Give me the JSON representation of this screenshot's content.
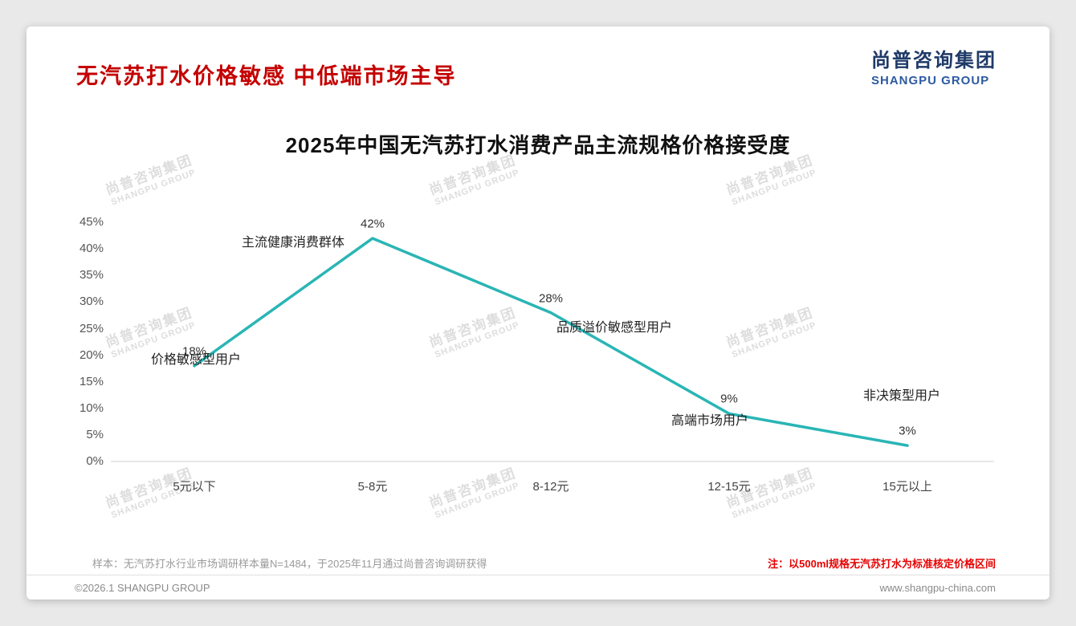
{
  "header": {
    "title": "无汽苏打水价格敏感 中低端市场主导",
    "logo_cn": "尚普咨询集团",
    "logo_en": "SHANGPU GROUP"
  },
  "chart_data": {
    "type": "line",
    "title": "2025年中国无汽苏打水消费产品主流规格价格接受度",
    "categories": [
      "5元以下",
      "5-8元",
      "8-12元",
      "12-15元",
      "15元以上"
    ],
    "values": [
      18,
      42,
      28,
      9,
      3
    ],
    "point_labels": [
      "18%",
      "42%",
      "28%",
      "9%",
      "3%"
    ],
    "annotations": [
      "价格敏感型用户",
      "主流健康消费群体",
      "品质溢价敏感型用户",
      "高端市场用户",
      "非决策型用户"
    ],
    "xlabel": "",
    "ylabel": "",
    "ylim": [
      0,
      45
    ],
    "ytick_step": 5,
    "ytick_suffix": "%",
    "grid": false,
    "legend": "none",
    "line_color": "#2ab5b5"
  },
  "footnotes": {
    "sample": "样本：无汽苏打水行业市场调研样本量N=1484，于2025年11月通过尚普咨询调研获得",
    "note": "注：以500ml规格无汽苏打水为标准核定价格区间"
  },
  "footer": {
    "copyright": "©2026.1 SHANGPU GROUP",
    "website": "www.shangpu-china.com"
  },
  "watermark": {
    "line1": "尚普咨询集团",
    "line2": "SHANGPU GROUP"
  },
  "colors": {
    "title_red": "#c40000",
    "logo_navy": "#1f3a68",
    "logo_blue": "#2d5aa0",
    "line_teal": "#2ab5b5",
    "note_red": "#e60000",
    "card_bg": "#ffffff",
    "page_bg": "#e9e9e9"
  }
}
